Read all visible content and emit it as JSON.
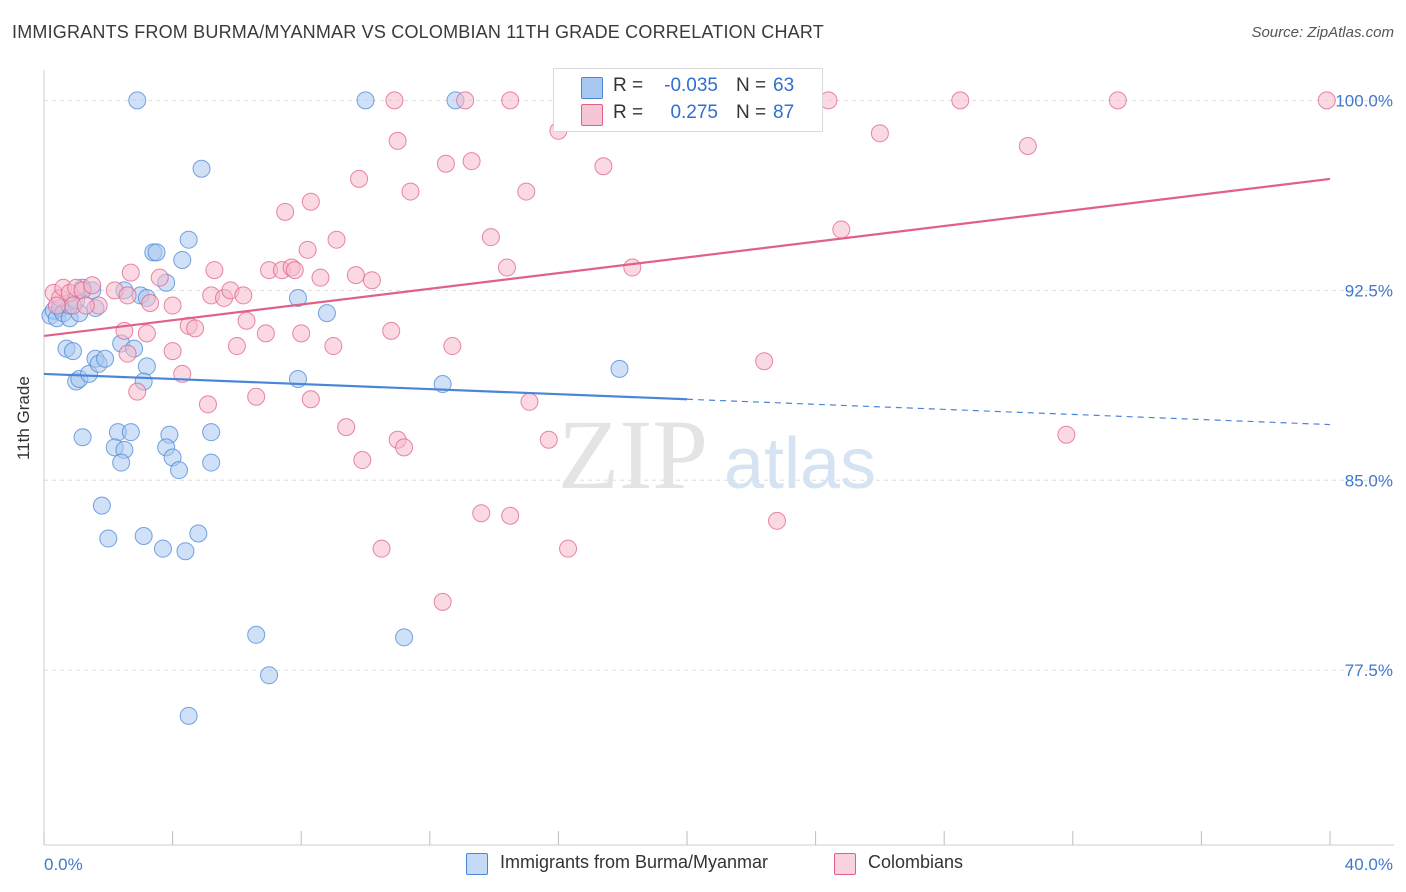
{
  "title": "IMMIGRANTS FROM BURMA/MYANMAR VS COLOMBIAN 11TH GRADE CORRELATION CHART",
  "source": "Source: ZipAtlas.com",
  "watermark": {
    "zip": "ZIP",
    "atlas": "atlas"
  },
  "legend": {
    "rows": [
      {
        "r_label": "R =",
        "r_value": "-0.035",
        "n_label": "N =",
        "n_value": "63",
        "color": "#a9c8f1"
      },
      {
        "r_label": "R =",
        "r_value": "0.275",
        "n_label": "N =",
        "n_value": "87",
        "color": "#f5b9cb"
      }
    ]
  },
  "bottom_legend": {
    "burma": "Immigrants from Burma/Myanmar",
    "colombians": "Colombians"
  },
  "chart_data": {
    "type": "scatter",
    "title": "IMMIGRANTS FROM BURMA/MYANMAR VS COLOMBIAN 11TH GRADE CORRELATION CHART",
    "xlabel": "",
    "ylabel": "11th Grade",
    "xlim": [
      0,
      40
    ],
    "ylim": [
      70.6,
      101.2
    ],
    "x_tick_labels": [
      "0.0%",
      "40.0%"
    ],
    "y_ticks": [
      77.5,
      85.0,
      92.5,
      100.0
    ],
    "y_tick_labels": [
      "77.5%",
      "85.0%",
      "92.5%",
      "100.0%"
    ],
    "grid": true,
    "legend_position": "top-center",
    "series": [
      {
        "name": "Immigrants from Burma/Myanmar",
        "color": "#4a86d8",
        "fill": "#a9c8f1",
        "trend": {
          "x": [
            0,
            20
          ],
          "y": [
            89.2,
            88.2
          ],
          "dashed_to": [
            40,
            87.2
          ]
        },
        "points": [
          [
            0.2,
            91.5
          ],
          [
            0.3,
            91.7
          ],
          [
            0.4,
            91.4
          ],
          [
            0.5,
            91.8
          ],
          [
            0.6,
            91.6
          ],
          [
            0.8,
            91.4
          ],
          [
            1.1,
            91.6
          ],
          [
            0.7,
            90.2
          ],
          [
            0.9,
            90.1
          ],
          [
            1.0,
            88.9
          ],
          [
            1.1,
            89.0
          ],
          [
            1.4,
            89.2
          ],
          [
            1.6,
            89.8
          ],
          [
            1.7,
            89.6
          ],
          [
            1.9,
            89.8
          ],
          [
            2.4,
            90.4
          ],
          [
            2.8,
            90.2
          ],
          [
            3.2,
            89.5
          ],
          [
            3.1,
            88.9
          ],
          [
            1.2,
            86.7
          ],
          [
            2.3,
            86.9
          ],
          [
            2.7,
            86.9
          ],
          [
            2.2,
            86.3
          ],
          [
            2.5,
            86.2
          ],
          [
            2.4,
            85.7
          ],
          [
            3.9,
            86.8
          ],
          [
            3.8,
            86.3
          ],
          [
            4.0,
            85.9
          ],
          [
            4.2,
            85.4
          ],
          [
            5.2,
            86.9
          ],
          [
            5.2,
            85.7
          ],
          [
            1.8,
            84.0
          ],
          [
            2.0,
            82.7
          ],
          [
            3.1,
            82.8
          ],
          [
            3.7,
            82.3
          ],
          [
            4.4,
            82.2
          ],
          [
            4.8,
            82.9
          ],
          [
            3.0,
            92.3
          ],
          [
            3.2,
            92.2
          ],
          [
            1.2,
            92.6
          ],
          [
            1.5,
            92.5
          ],
          [
            3.4,
            94.0
          ],
          [
            3.5,
            94.0
          ],
          [
            4.3,
            93.7
          ],
          [
            4.5,
            94.5
          ],
          [
            4.9,
            97.3
          ],
          [
            2.9,
            100.0
          ],
          [
            10.0,
            100.0
          ],
          [
            12.8,
            100.0
          ],
          [
            7.9,
            92.2
          ],
          [
            8.8,
            91.6
          ],
          [
            7.9,
            89.0
          ],
          [
            12.4,
            88.8
          ],
          [
            17.9,
            89.4
          ],
          [
            6.6,
            78.9
          ],
          [
            11.2,
            78.8
          ],
          [
            7.0,
            77.3
          ],
          [
            4.5,
            75.7
          ],
          [
            2.5,
            92.5
          ],
          [
            0.8,
            91.9
          ],
          [
            1.6,
            91.8
          ],
          [
            3.8,
            92.8
          ],
          [
            1.0,
            92.1
          ]
        ]
      },
      {
        "name": "Colombians",
        "color": "#e0608a",
        "fill": "#f5b9cb",
        "trend": {
          "x": [
            0,
            40
          ],
          "y": [
            90.7,
            96.9
          ]
        },
        "points": [
          [
            0.3,
            92.4
          ],
          [
            0.5,
            92.2
          ],
          [
            0.6,
            92.6
          ],
          [
            0.8,
            92.4
          ],
          [
            1.0,
            92.6
          ],
          [
            1.2,
            92.5
          ],
          [
            0.9,
            91.9
          ],
          [
            1.5,
            92.7
          ],
          [
            1.7,
            91.9
          ],
          [
            2.2,
            92.5
          ],
          [
            2.6,
            92.3
          ],
          [
            2.7,
            93.2
          ],
          [
            3.3,
            92.0
          ],
          [
            3.6,
            93.0
          ],
          [
            4.0,
            91.9
          ],
          [
            4.5,
            91.1
          ],
          [
            4.7,
            91.0
          ],
          [
            5.2,
            92.3
          ],
          [
            5.3,
            93.3
          ],
          [
            5.6,
            92.2
          ],
          [
            5.8,
            92.5
          ],
          [
            6.2,
            92.3
          ],
          [
            6.3,
            91.3
          ],
          [
            7.0,
            93.3
          ],
          [
            7.4,
            93.3
          ],
          [
            7.7,
            93.4
          ],
          [
            7.8,
            93.3
          ],
          [
            8.2,
            94.1
          ],
          [
            8.6,
            93.0
          ],
          [
            9.1,
            94.5
          ],
          [
            9.7,
            93.1
          ],
          [
            10.2,
            92.9
          ],
          [
            6.0,
            90.3
          ],
          [
            6.9,
            90.8
          ],
          [
            2.5,
            90.9
          ],
          [
            2.6,
            90.0
          ],
          [
            3.2,
            90.8
          ],
          [
            4.0,
            90.1
          ],
          [
            8.0,
            90.8
          ],
          [
            9.0,
            90.3
          ],
          [
            10.8,
            90.9
          ],
          [
            12.7,
            90.3
          ],
          [
            2.9,
            88.5
          ],
          [
            4.3,
            89.2
          ],
          [
            5.1,
            88.0
          ],
          [
            6.6,
            88.3
          ],
          [
            8.3,
            88.2
          ],
          [
            9.4,
            87.1
          ],
          [
            11.0,
            86.6
          ],
          [
            15.1,
            88.1
          ],
          [
            15.7,
            86.6
          ],
          [
            9.9,
            85.8
          ],
          [
            11.2,
            86.3
          ],
          [
            14.5,
            83.6
          ],
          [
            13.6,
            83.7
          ],
          [
            10.5,
            82.3
          ],
          [
            16.3,
            82.3
          ],
          [
            12.4,
            80.2
          ],
          [
            22.4,
            89.7
          ],
          [
            22.8,
            83.4
          ],
          [
            31.8,
            86.8
          ],
          [
            12.5,
            97.5
          ],
          [
            13.3,
            97.6
          ],
          [
            14.4,
            93.4
          ],
          [
            13.9,
            94.6
          ],
          [
            15.0,
            96.4
          ],
          [
            9.8,
            96.9
          ],
          [
            11.4,
            96.4
          ],
          [
            7.5,
            95.6
          ],
          [
            8.3,
            96.0
          ],
          [
            11.0,
            98.4
          ],
          [
            10.9,
            100.0
          ],
          [
            13.1,
            100.0
          ],
          [
            14.5,
            100.0
          ],
          [
            16.0,
            98.8
          ],
          [
            17.4,
            97.4
          ],
          [
            18.3,
            93.4
          ],
          [
            24.8,
            94.9
          ],
          [
            26.0,
            98.7
          ],
          [
            30.6,
            98.2
          ],
          [
            28.5,
            100.0
          ],
          [
            24.4,
            100.0
          ],
          [
            33.4,
            100.0
          ],
          [
            39.9,
            100.0
          ],
          [
            19.0,
            100.0
          ],
          [
            1.3,
            91.9
          ],
          [
            0.4,
            91.9
          ]
        ]
      }
    ]
  }
}
